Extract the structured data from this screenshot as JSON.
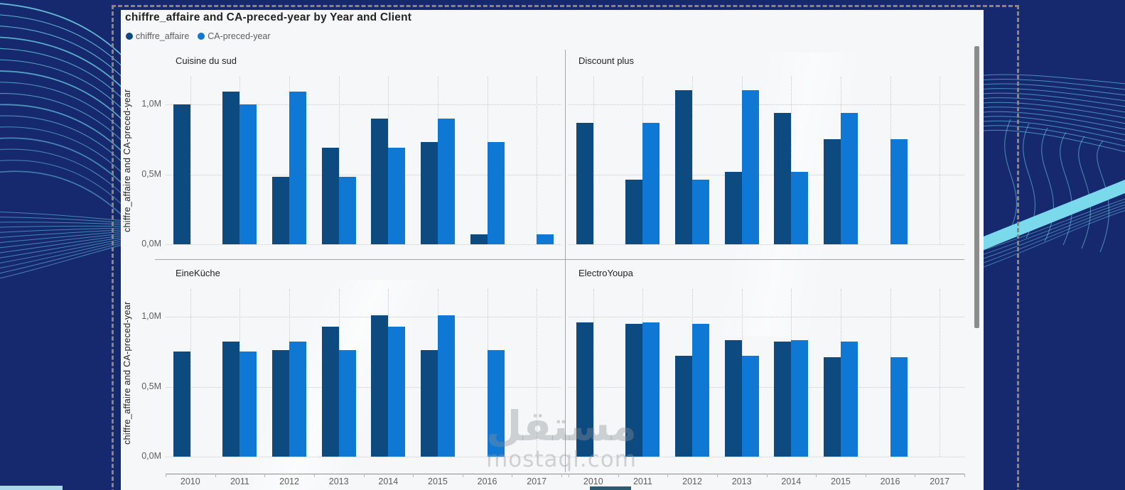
{
  "visual": {
    "title": "chiffre_affaire and CA-preced-year by Year and Client",
    "legend": {
      "items": [
        {
          "label": "chiffre_affaire",
          "color": "#0D4A7F"
        },
        {
          "label": "CA-preced-year",
          "color": "#0F78D4"
        }
      ]
    },
    "y_axis_title": "chiffre_affaire and CA-preced-year"
  },
  "chart_data": {
    "type": "bar",
    "layout": "small-multiples-2x2",
    "title": "chiffre_affaire and CA-preced-year by Year and Client",
    "ylabel": "chiffre_affaire and CA-preced-year",
    "units": "M",
    "ylim": [
      0,
      1.2
    ],
    "grid": true,
    "legend_position": "top-left",
    "categories": [
      "2010",
      "2011",
      "2012",
      "2013",
      "2014",
      "2015",
      "2016",
      "2017"
    ],
    "series_names": [
      "chiffre_affaire",
      "CA-preced-year"
    ],
    "series_colors": [
      "#0D4A7F",
      "#0F78D4"
    ],
    "y_ticks": [
      {
        "value": 1.0,
        "label": "1,0M"
      },
      {
        "value": 0.5,
        "label": "0,5M"
      },
      {
        "value": 0.0,
        "label": "0,0M"
      }
    ],
    "panels": [
      {
        "title": "Cuisine du sud",
        "series": [
          {
            "name": "chiffre_affaire",
            "values": [
              1.0,
              1.09,
              0.48,
              0.69,
              0.9,
              0.73,
              0.07,
              null
            ]
          },
          {
            "name": "CA-preced-year",
            "values": [
              null,
              1.0,
              1.09,
              0.48,
              0.69,
              0.9,
              0.73,
              0.07
            ]
          }
        ]
      },
      {
        "title": "Discount plus",
        "series": [
          {
            "name": "chiffre_affaire",
            "values": [
              0.87,
              0.46,
              1.1,
              0.52,
              0.94,
              0.75,
              null,
              null
            ]
          },
          {
            "name": "CA-preced-year",
            "values": [
              null,
              0.87,
              0.46,
              1.1,
              0.52,
              0.94,
              0.75,
              null
            ]
          }
        ]
      },
      {
        "title": "EineKüche",
        "series": [
          {
            "name": "chiffre_affaire",
            "values": [
              0.75,
              0.82,
              0.76,
              0.93,
              1.01,
              0.76,
              null,
              null
            ]
          },
          {
            "name": "CA-preced-year",
            "values": [
              null,
              0.75,
              0.82,
              0.76,
              0.93,
              1.01,
              0.76,
              null
            ]
          }
        ]
      },
      {
        "title": "ElectroYoupa",
        "series": [
          {
            "name": "chiffre_affaire",
            "values": [
              0.96,
              0.95,
              0.72,
              0.83,
              0.82,
              0.71,
              null,
              null
            ]
          },
          {
            "name": "CA-preced-year",
            "values": [
              null,
              0.96,
              0.95,
              0.72,
              0.83,
              0.82,
              0.71,
              null
            ]
          }
        ]
      }
    ]
  },
  "watermark": {
    "text_arabic": "مستقل",
    "text_latin": "mostaql.com"
  },
  "colors": {
    "background": "#16286E",
    "panel_background": "#F6F7F9",
    "accent_cyan": "#6ED3E7",
    "bar_dark": "#0D4A7F",
    "bar_light": "#0F78D4",
    "axis_text": "#605E5C",
    "title_text": "#252423",
    "gridline": "#C6CBD1",
    "divider": "#A6A6A6",
    "scrollbar": "#8C8C8C",
    "selection_border": "#8E8672",
    "hscroll_thumb": "#2E5A70"
  }
}
